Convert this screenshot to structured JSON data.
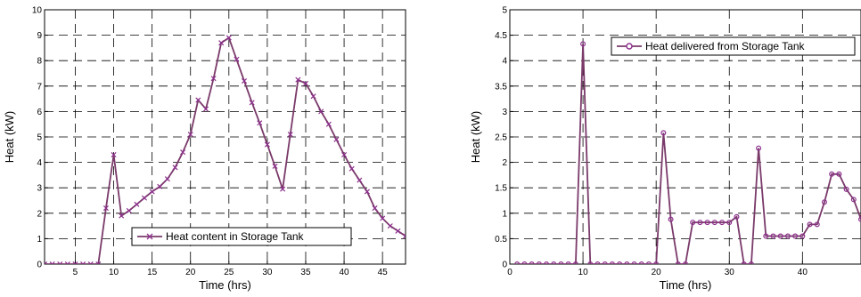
{
  "chart_data": [
    {
      "type": "line",
      "xlabel": "Time (hrs)",
      "ylabel": "Heat (kW)",
      "xlim": [
        1,
        48
      ],
      "ylim": [
        0,
        10
      ],
      "xticks": [
        5,
        10,
        15,
        20,
        25,
        30,
        35,
        40,
        45
      ],
      "yticks": [
        0,
        1,
        2,
        3,
        4,
        5,
        6,
        7,
        8,
        9,
        10
      ],
      "grid": true,
      "grid_style": "dashed",
      "legend_position": "bottom-right",
      "marker": "x",
      "color": "#7a3a6a",
      "marker_color": "#8c2f8c",
      "series": [
        {
          "name": "Heat content in Storage Tank",
          "x": [
            1,
            2,
            3,
            4,
            5,
            6,
            7,
            8,
            9,
            10,
            11,
            12,
            13,
            14,
            15,
            16,
            17,
            18,
            19,
            20,
            21,
            22,
            23,
            24,
            25,
            26,
            27,
            28,
            29,
            30,
            31,
            32,
            33,
            34,
            35,
            36,
            37,
            38,
            39,
            40,
            41,
            42,
            43,
            44,
            45,
            46,
            47,
            48
          ],
          "values": [
            0,
            0,
            0,
            0,
            0,
            0,
            0,
            0,
            2.2,
            4.3,
            1.9,
            2.1,
            2.35,
            2.6,
            2.85,
            3.05,
            3.35,
            3.8,
            4.4,
            5.1,
            6.45,
            6.1,
            7.3,
            8.7,
            8.9,
            8.05,
            7.2,
            6.35,
            5.55,
            4.7,
            3.85,
            2.95,
            5.1,
            7.25,
            7.1,
            6.6,
            6.0,
            5.5,
            4.9,
            4.3,
            3.75,
            3.3,
            2.85,
            2.2,
            1.8,
            1.5,
            1.3,
            1.1
          ]
        }
      ]
    },
    {
      "type": "line",
      "xlabel": "Time (hrs)",
      "ylabel": "Heat (kW)",
      "xlim": [
        0,
        48
      ],
      "ylim": [
        0,
        5
      ],
      "xticks": [
        0,
        10,
        20,
        30,
        40
      ],
      "yticks": [
        0,
        0.5,
        1,
        1.5,
        2,
        2.5,
        3,
        3.5,
        4,
        4.5,
        5
      ],
      "grid": true,
      "grid_style": "dashed",
      "legend_position": "top-right",
      "marker": "o",
      "color": "#7a3a6a",
      "marker_color": "#8c2f8c",
      "series": [
        {
          "name": "Heat delivered from Storage Tank",
          "x": [
            1,
            2,
            3,
            4,
            5,
            6,
            7,
            8,
            9,
            10,
            11,
            12,
            13,
            14,
            15,
            16,
            17,
            18,
            19,
            20,
            21,
            22,
            23,
            24,
            25,
            26,
            27,
            28,
            29,
            30,
            31,
            32,
            33,
            34,
            35,
            36,
            37,
            38,
            39,
            40,
            41,
            42,
            43,
            44,
            45,
            46,
            47,
            48
          ],
          "values": [
            0,
            0,
            0,
            0,
            0,
            0,
            0,
            0,
            0,
            4.33,
            0,
            0,
            0,
            0,
            0,
            0,
            0,
            0,
            0,
            0,
            2.58,
            0.88,
            0,
            0,
            0.82,
            0.82,
            0.82,
            0.82,
            0.82,
            0.82,
            0.93,
            0,
            0,
            2.28,
            0.55,
            0.55,
            0.55,
            0.55,
            0.55,
            0.55,
            0.78,
            0.78,
            1.22,
            1.77,
            1.77,
            1.47,
            1.27,
            0.88
          ]
        }
      ]
    }
  ]
}
